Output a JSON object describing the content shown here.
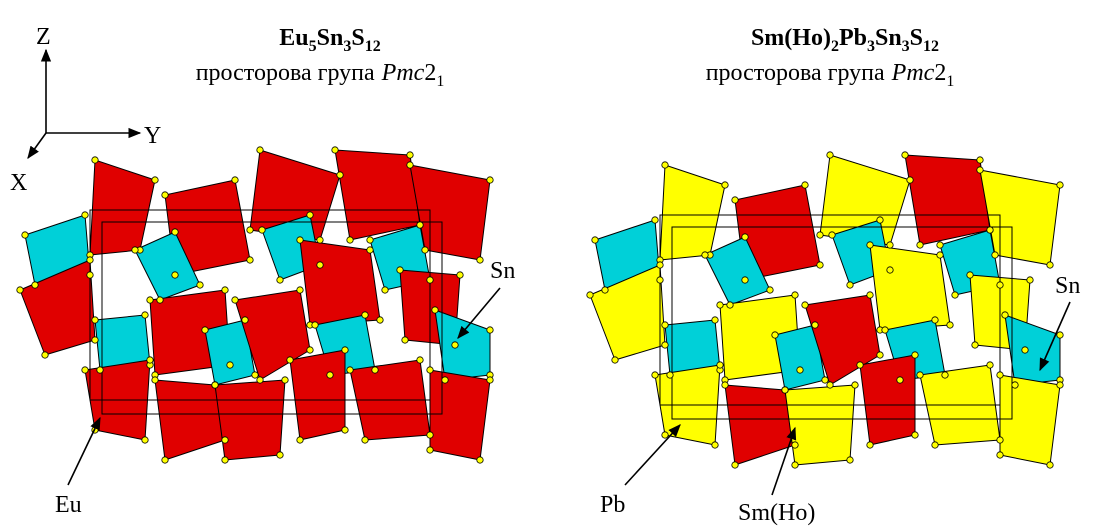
{
  "axes": {
    "z": "Z",
    "y": "Y",
    "x": "X"
  },
  "left": {
    "formula": [
      "Eu",
      "5",
      "Sn",
      "3",
      "S",
      "12"
    ],
    "space_group": [
      "просторова група",
      "Pmc",
      "2",
      "1"
    ],
    "labels": [
      "Sn",
      "Eu"
    ]
  },
  "right": {
    "formula": [
      "Sm(Ho)",
      "2",
      "Pb",
      "3",
      "Sn",
      "3",
      "S",
      "12"
    ],
    "space_group": [
      "просторова група",
      "Pmc",
      "2",
      "1"
    ],
    "labels": [
      "Sn",
      "Pb",
      "Sm(Ho)"
    ]
  }
}
